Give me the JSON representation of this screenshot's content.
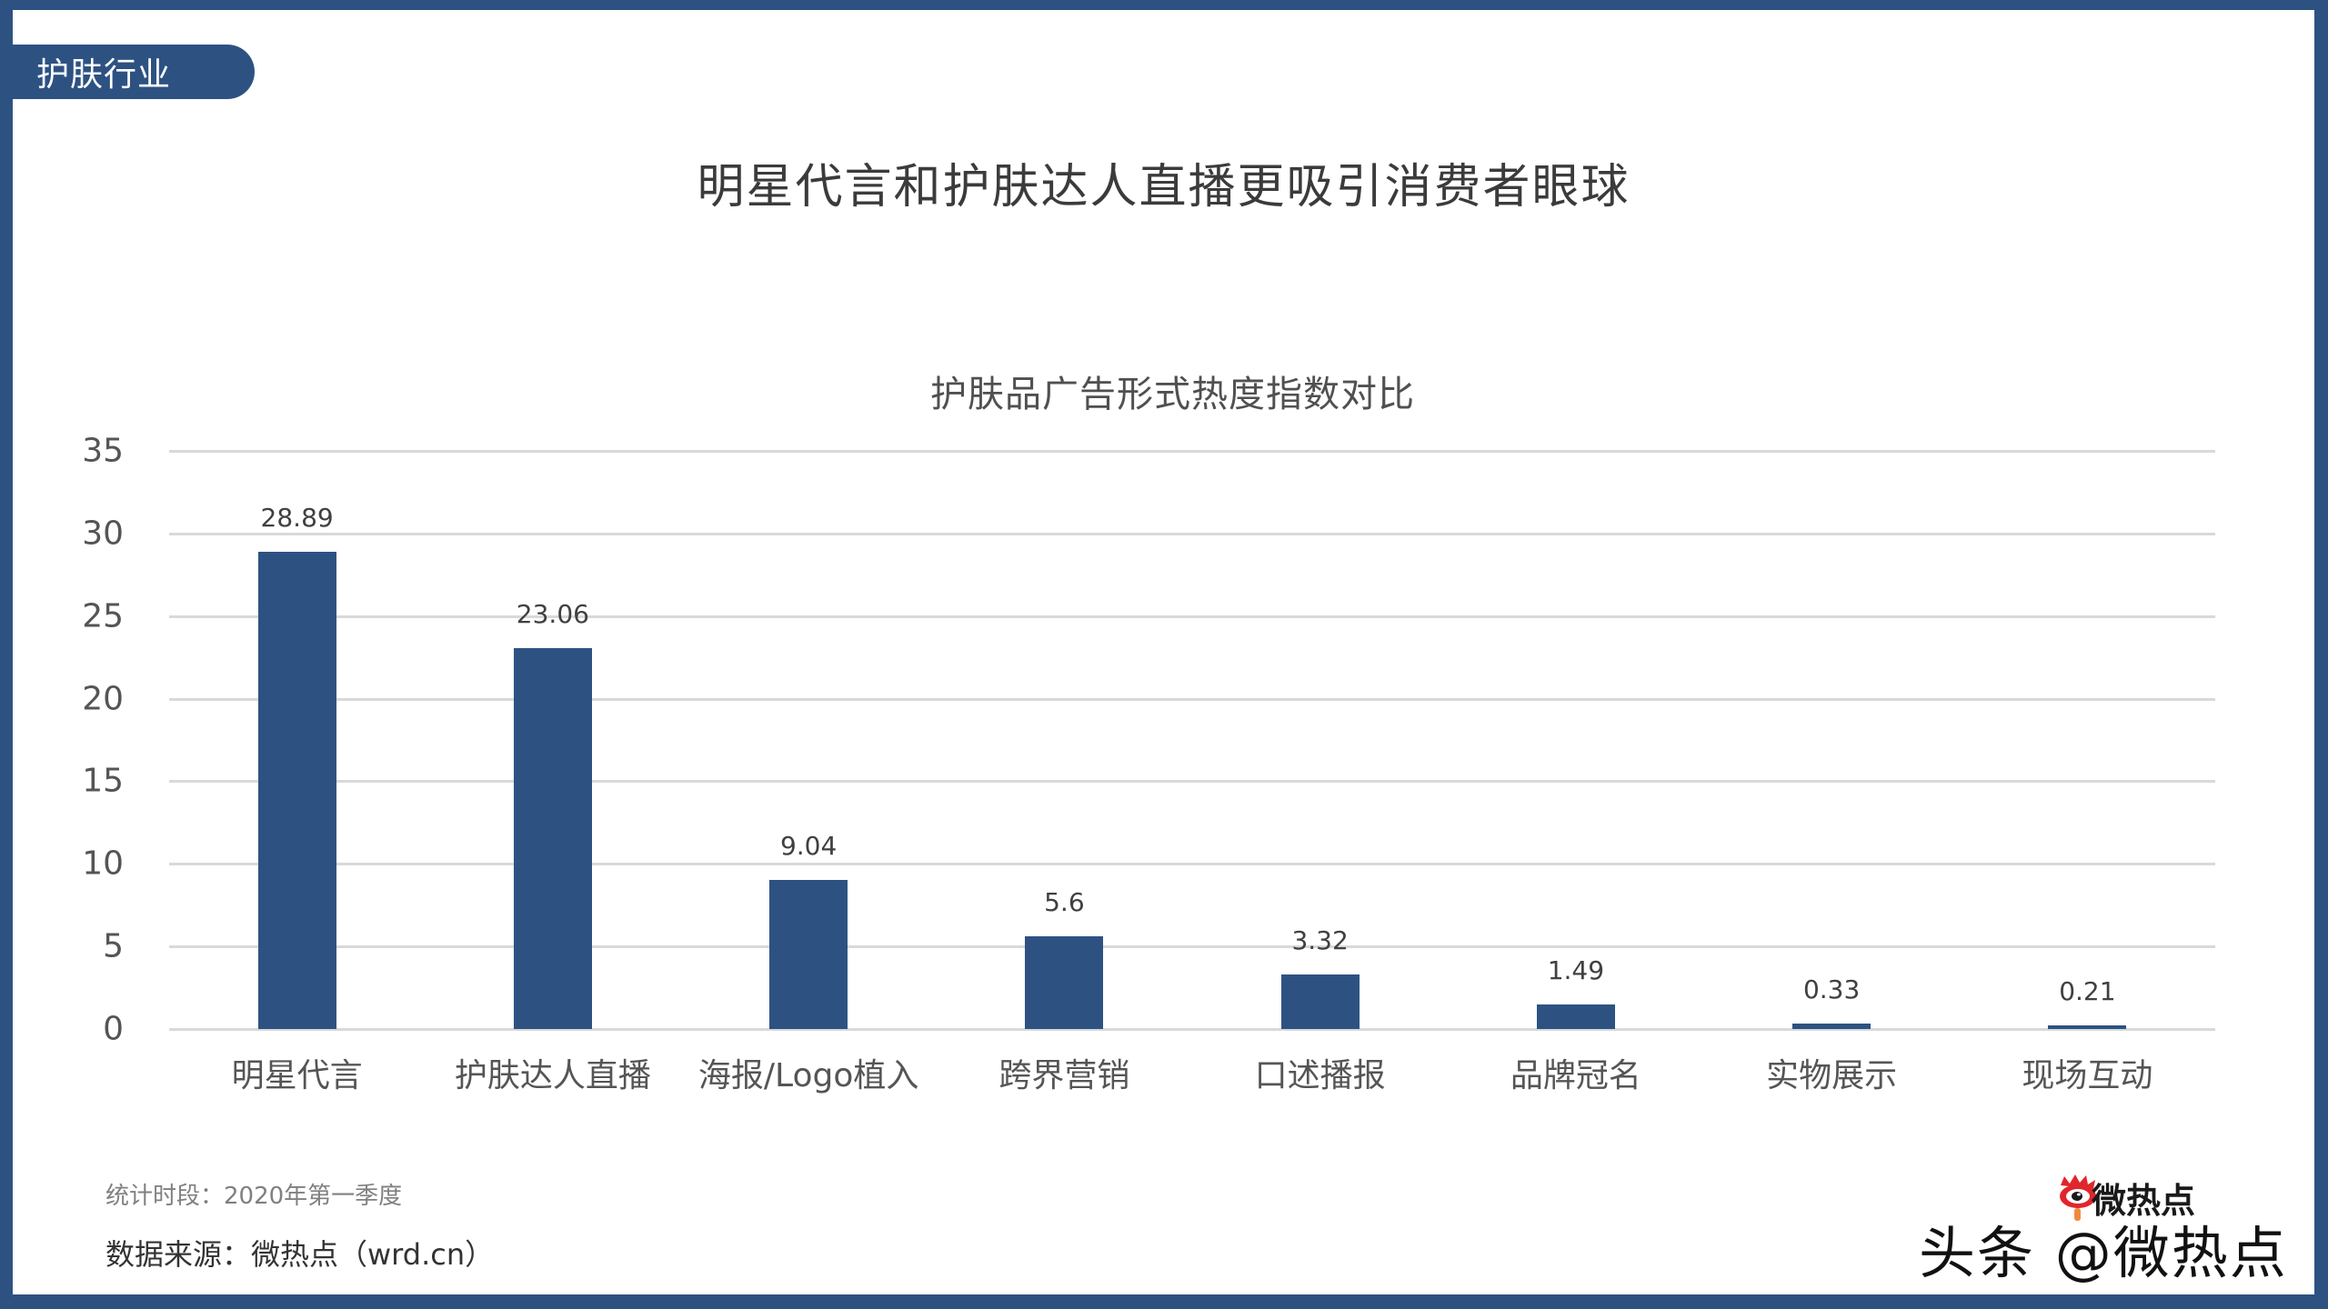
{
  "header": {
    "tag_label": "护肤行业",
    "main_title": "明星代言和护肤达人直播更吸引消费者眼球"
  },
  "colors": {
    "frame": "#2d5282",
    "bar": "#2d5282",
    "gridline": "#d9d9d9",
    "text_dark": "#3b3b3b",
    "watermark_eye": "#e0262c"
  },
  "chart_data": {
    "type": "bar",
    "title": "护肤品广告形式热度指数对比",
    "xlabel": "",
    "ylabel": "",
    "ylim": [
      0,
      35
    ],
    "yticks": [
      0,
      5,
      10,
      15,
      20,
      25,
      30,
      35
    ],
    "grid": true,
    "legend": null,
    "categories": [
      "明星代言",
      "护肤达人直播",
      "海报/Logo植入",
      "跨界营销",
      "口述播报",
      "品牌冠名",
      "实物展示",
      "现场互动"
    ],
    "values": [
      28.89,
      23.06,
      9.04,
      5.6,
      3.32,
      1.49,
      0.33,
      0.21
    ],
    "value_labels": [
      "28.89",
      "23.06",
      "9.04",
      "5.6",
      "3.32",
      "1.49",
      "0.33",
      "0.21"
    ]
  },
  "footer": {
    "period": "统计时段：2020年第一季度",
    "source": "数据来源：微热点（wrd.cn）"
  },
  "watermark": {
    "logo_text": "微热点",
    "overlay_text": "头条 @微热点",
    "icon": "weibo-eye-icon"
  }
}
